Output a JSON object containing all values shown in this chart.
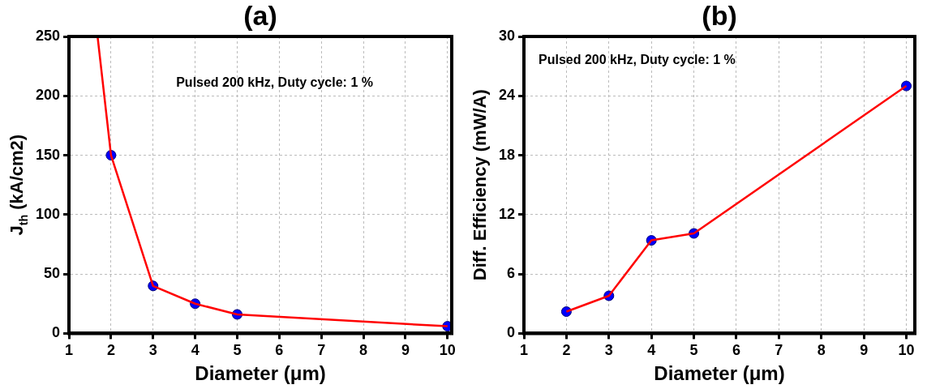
{
  "chart_data": [
    {
      "type": "line",
      "title": "(a)",
      "xlabel": "Diameter (μm)",
      "ylabel": "J$_{th}$ (kA/cm2)",
      "annotations": [
        "Pulsed 200 kHz, Duty cycle: 1 %"
      ],
      "xlim": [
        1,
        10.1
      ],
      "xticks": [
        1,
        2,
        3,
        4,
        5,
        6,
        7,
        8,
        9,
        10
      ],
      "ylim": [
        0,
        250
      ],
      "yticks": [
        0,
        50,
        100,
        150,
        200,
        250
      ],
      "grid": true,
      "legend": false,
      "series": [
        {
          "type": "line",
          "x": [
            1.68,
            2,
            3,
            4,
            5,
            10
          ],
          "values": [
            250,
            150,
            40,
            25,
            16,
            6
          ],
          "color": "#ff0000",
          "marker": "none"
        },
        {
          "type": "scatter",
          "x": [
            2,
            3,
            4,
            5,
            10
          ],
          "values": [
            150,
            40,
            25,
            16,
            6
          ],
          "color": "#0000ff",
          "marker": "circle"
        }
      ]
    },
    {
      "type": "line",
      "title": "(b)",
      "xlabel": "Diameter (μm)",
      "ylabel": "Diff. Efficiency (mW/A)",
      "annotations": [
        "Pulsed 200 kHz, Duty cycle: 1 %"
      ],
      "xlim": [
        1,
        10.2
      ],
      "xticks": [
        1,
        2,
        3,
        4,
        5,
        6,
        7,
        8,
        9,
        10
      ],
      "ylim": [
        0,
        30
      ],
      "yticks": [
        0,
        6,
        12,
        18,
        24,
        30
      ],
      "grid": true,
      "legend": false,
      "series": [
        {
          "type": "line",
          "x": [
            2,
            3,
            4,
            5,
            10
          ],
          "values": [
            2.2,
            3.8,
            9.4,
            10.1,
            25
          ],
          "color": "#ff0000",
          "marker": "none"
        },
        {
          "type": "scatter",
          "x": [
            2,
            3,
            4,
            5,
            10
          ],
          "values": [
            2.2,
            3.8,
            9.4,
            10.1,
            25
          ],
          "color": "#0000ff",
          "marker": "circle"
        }
      ]
    }
  ]
}
